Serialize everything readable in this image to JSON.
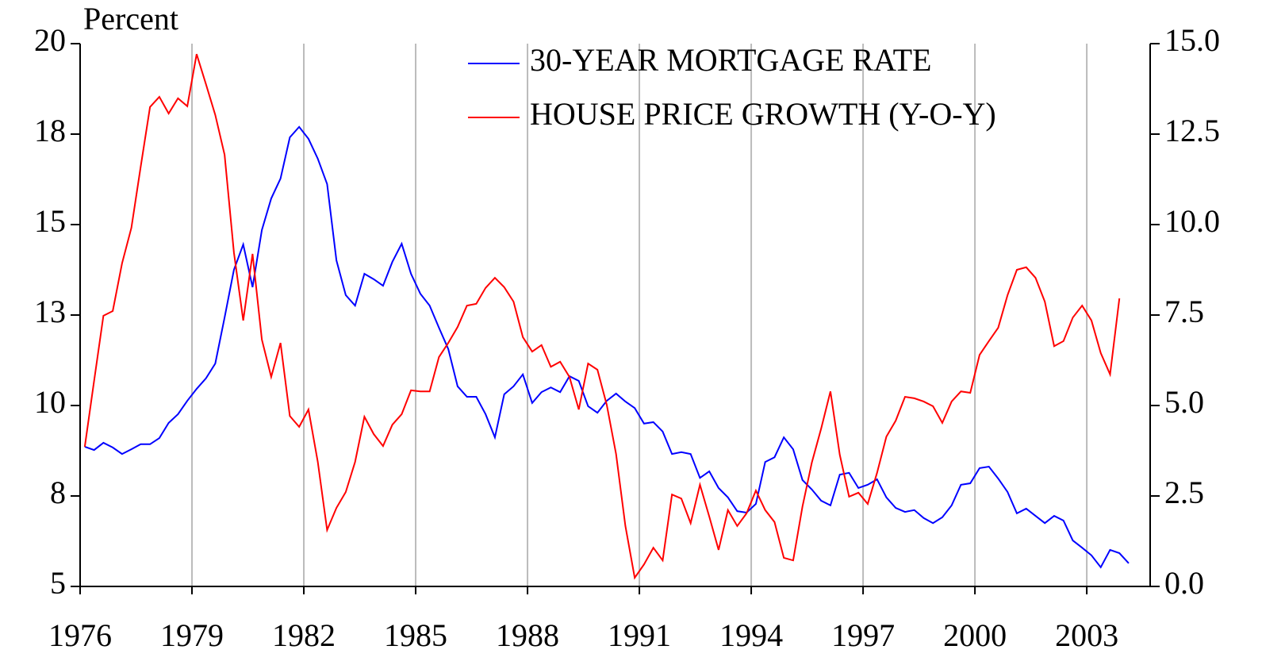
{
  "chart_data": {
    "type": "line",
    "y_label": "Percent",
    "x": [
      1976.125,
      1976.375,
      1976.625,
      1976.875,
      1977.125,
      1977.375,
      1977.625,
      1977.875,
      1978.125,
      1978.375,
      1978.625,
      1978.875,
      1979.125,
      1979.375,
      1979.625,
      1979.875,
      1980.125,
      1980.375,
      1980.625,
      1980.875,
      1981.125,
      1981.375,
      1981.625,
      1981.875,
      1982.125,
      1982.375,
      1982.625,
      1982.875,
      1983.125,
      1983.375,
      1983.625,
      1983.875,
      1984.125,
      1984.375,
      1984.625,
      1984.875,
      1985.125,
      1985.375,
      1985.625,
      1985.875,
      1986.125,
      1986.375,
      1986.625,
      1986.875,
      1987.125,
      1987.375,
      1987.625,
      1987.875,
      1988.125,
      1988.375,
      1988.625,
      1988.875,
      1989.125,
      1989.375,
      1989.625,
      1989.875,
      1990.125,
      1990.375,
      1990.625,
      1990.875,
      1991.125,
      1991.375,
      1991.625,
      1991.875,
      1992.125,
      1992.375,
      1992.625,
      1992.875,
      1993.125,
      1993.375,
      1993.625,
      1993.875,
      1994.125,
      1994.375,
      1994.625,
      1994.875,
      1995.125,
      1995.375,
      1995.625,
      1995.875,
      1996.125,
      1996.375,
      1996.625,
      1996.875,
      1997.125,
      1997.375,
      1997.625,
      1997.875,
      1998.125,
      1998.375,
      1998.625,
      1998.875,
      1999.125,
      1999.375,
      1999.625,
      1999.875,
      2000.125,
      2000.375,
      2000.625,
      2000.875,
      2001.125,
      2001.375,
      2001.625,
      2001.875,
      2002.125,
      2002.375,
      2002.625,
      2002.875,
      2003.125,
      2003.375,
      2003.625,
      2003.875,
      2004.125
    ],
    "series": [
      {
        "name": "30-YEAR MORTGAGE RATE",
        "color": "#0000ff",
        "values": [
          8.86,
          8.77,
          8.97,
          8.84,
          8.66,
          8.79,
          8.93,
          8.93,
          9.1,
          9.52,
          9.76,
          10.13,
          10.46,
          10.75,
          11.16,
          12.43,
          13.75,
          14.45,
          13.27,
          14.85,
          15.72,
          16.27,
          17.41,
          17.7,
          17.37,
          16.82,
          16.12,
          14.01,
          13.05,
          12.76,
          13.64,
          13.49,
          13.31,
          13.97,
          14.47,
          13.64,
          13.09,
          12.76,
          12.15,
          11.56,
          10.53,
          10.24,
          10.24,
          9.76,
          9.12,
          10.31,
          10.53,
          10.86,
          10.07,
          10.37,
          10.5,
          10.37,
          10.81,
          10.68,
          9.98,
          9.8,
          10.13,
          10.33,
          10.11,
          9.93,
          9.5,
          9.54,
          9.28,
          8.66,
          8.71,
          8.66,
          8.0,
          8.18,
          7.72,
          7.46,
          7.08,
          7.04,
          7.28,
          8.44,
          8.57,
          9.12,
          8.79,
          7.94,
          7.68,
          7.37,
          7.24,
          8.09,
          8.14,
          7.72,
          7.81,
          7.96,
          7.46,
          7.17,
          7.06,
          7.11,
          6.89,
          6.75,
          6.91,
          7.24,
          7.81,
          7.85,
          8.27,
          8.31,
          7.98,
          7.61,
          7.02,
          7.15,
          6.95,
          6.75,
          6.95,
          6.82,
          6.27,
          6.07,
          5.86,
          5.53,
          6.01,
          5.92,
          5.64
        ]
      },
      {
        "name": "HOUSE PRICE GROWTH (Y-O-Y)",
        "color": "#ff0000",
        "axis": "y2",
        "values": [
          3.86,
          5.68,
          7.48,
          7.61,
          8.93,
          9.91,
          11.6,
          13.25,
          13.53,
          13.07,
          13.49,
          13.27,
          14.71,
          13.88,
          13.03,
          11.93,
          9.23,
          7.35,
          9.19,
          6.82,
          5.79,
          6.73,
          4.71,
          4.41,
          4.89,
          3.44,
          1.56,
          2.17,
          2.61,
          3.44,
          4.69,
          4.21,
          3.88,
          4.47,
          4.76,
          5.42,
          5.39,
          5.39,
          6.34,
          6.73,
          7.17,
          7.76,
          7.81,
          8.25,
          8.53,
          8.27,
          7.87,
          6.89,
          6.49,
          6.67,
          6.07,
          6.21,
          5.79,
          4.89,
          6.16,
          5.99,
          5.02,
          3.66,
          1.67,
          0.24,
          0.61,
          1.07,
          0.72,
          2.54,
          2.43,
          1.75,
          2.81,
          1.93,
          1.01,
          2.11,
          1.67,
          2.02,
          2.65,
          2.11,
          1.78,
          0.79,
          0.72,
          2.21,
          3.42,
          4.36,
          5.39,
          3.64,
          2.48,
          2.59,
          2.28,
          3.14,
          4.14,
          4.58,
          5.24,
          5.2,
          5.11,
          4.98,
          4.52,
          5.11,
          5.39,
          5.35,
          6.4,
          6.78,
          7.15,
          8.05,
          8.75,
          8.82,
          8.53,
          7.87,
          6.64,
          6.78,
          7.43,
          7.76,
          7.35,
          6.45,
          5.86,
          7.96,
          null
        ]
      }
    ],
    "xlim": [
      1976,
      2004.7
    ],
    "xticks": [
      1976,
      1979,
      1982,
      1985,
      1988,
      1991,
      1994,
      1997,
      2000,
      2003
    ],
    "ylim": [
      5,
      20
    ],
    "yticks": [
      5,
      {
        "value": 7.5,
        "label": "8"
      },
      10,
      {
        "value": 12.5,
        "label": "13"
      },
      15,
      {
        "value": 17.5,
        "label": "18"
      },
      20
    ],
    "y2lim": [
      0,
      15
    ],
    "y2ticks": [
      {
        "value": 0,
        "label": "0.0"
      },
      {
        "value": 2.5,
        "label": "2.5"
      },
      {
        "value": 5,
        "label": "5.0"
      },
      {
        "value": 7.5,
        "label": "7.5"
      },
      {
        "value": 10,
        "label": "10.0"
      },
      {
        "value": 12.5,
        "label": "12.5"
      },
      {
        "value": 15,
        "label": "15.0"
      }
    ],
    "grid": true,
    "legend": "top"
  }
}
